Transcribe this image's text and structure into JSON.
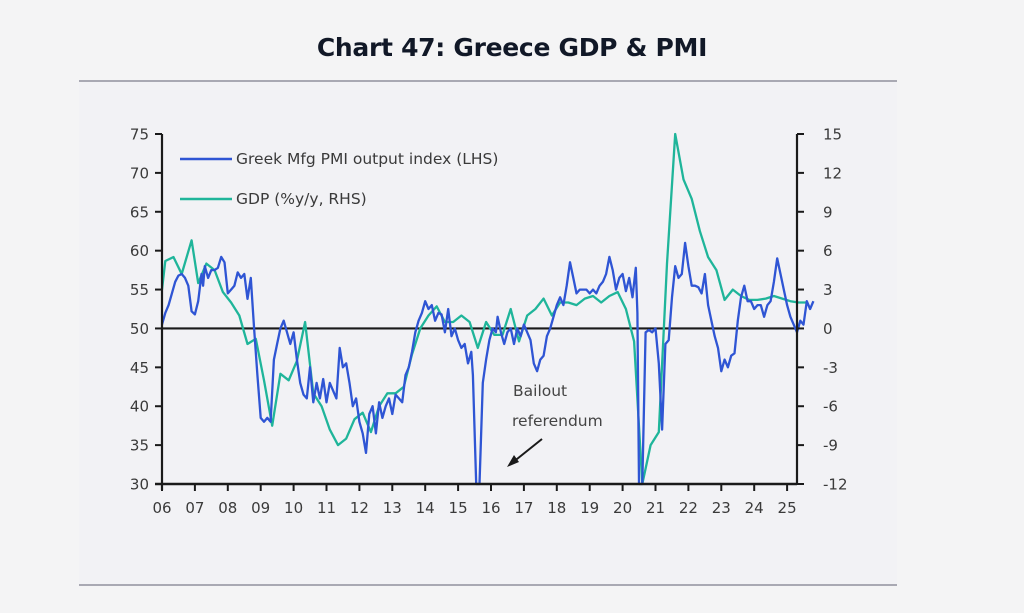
{
  "page": {
    "title": "Chart 47: Greece GDP & PMI"
  },
  "chart_data": {
    "type": "line",
    "title": "Chart 47: Greece GDP & PMI",
    "xlabel": "",
    "ylabel_left": "",
    "ylabel_right": "",
    "x_tick_labels": [
      "06",
      "07",
      "08",
      "09",
      "10",
      "11",
      "12",
      "13",
      "14",
      "15",
      "16",
      "17",
      "18",
      "19",
      "20",
      "21",
      "22",
      "23",
      "24",
      "25"
    ],
    "xlim": [
      2006.0,
      2025.3
    ],
    "y_left": {
      "lim": [
        30,
        75
      ],
      "ticks": [
        75,
        70,
        65,
        60,
        55,
        50,
        45,
        40,
        35,
        30
      ]
    },
    "y_right": {
      "lim": [
        -12,
        15
      ],
      "ticks": [
        "15",
        "12",
        "9",
        "6",
        "3",
        "0",
        "-3",
        "-6",
        "-9",
        "-12"
      ]
    },
    "reference_line": {
      "axis": "left",
      "value": 50
    },
    "legend": {
      "position": "top-left"
    },
    "colors": {
      "pmi": "#2f55d4",
      "gdp": "#1fb59a",
      "axis": "#1a1a1a"
    },
    "series": [
      {
        "name": "Greek Mfg PMI output index (LHS)",
        "axis": "left",
        "points": [
          [
            2006.0,
            50.5
          ],
          [
            2006.1,
            52
          ],
          [
            2006.2,
            53
          ],
          [
            2006.3,
            54.5
          ],
          [
            2006.4,
            56
          ],
          [
            2006.5,
            56.8
          ],
          [
            2006.6,
            57
          ],
          [
            2006.7,
            56.5
          ],
          [
            2006.8,
            55.5
          ],
          [
            2006.9,
            52.2
          ],
          [
            2007.0,
            51.8
          ],
          [
            2007.1,
            53.5
          ],
          [
            2007.2,
            57
          ],
          [
            2007.25,
            55.5
          ],
          [
            2007.3,
            58
          ],
          [
            2007.4,
            56.5
          ],
          [
            2007.5,
            57.5
          ],
          [
            2007.6,
            57.5
          ],
          [
            2007.7,
            57.8
          ],
          [
            2007.8,
            59.2
          ],
          [
            2007.9,
            58.5
          ],
          [
            2008.0,
            54.5
          ],
          [
            2008.1,
            55
          ],
          [
            2008.2,
            55.5
          ],
          [
            2008.3,
            57.2
          ],
          [
            2008.4,
            56.5
          ],
          [
            2008.5,
            57
          ],
          [
            2008.6,
            53.8
          ],
          [
            2008.7,
            56.5
          ],
          [
            2008.8,
            50
          ],
          [
            2008.9,
            44
          ],
          [
            2009.0,
            38.5
          ],
          [
            2009.1,
            38
          ],
          [
            2009.2,
            38.5
          ],
          [
            2009.3,
            38
          ],
          [
            2009.4,
            46
          ],
          [
            2009.5,
            48
          ],
          [
            2009.6,
            50
          ],
          [
            2009.7,
            51
          ],
          [
            2009.8,
            49.5
          ],
          [
            2009.9,
            48
          ],
          [
            2010.0,
            49.5
          ],
          [
            2010.1,
            46
          ],
          [
            2010.2,
            43
          ],
          [
            2010.3,
            41.5
          ],
          [
            2010.4,
            41
          ],
          [
            2010.5,
            45
          ],
          [
            2010.6,
            40.5
          ],
          [
            2010.7,
            43
          ],
          [
            2010.8,
            41
          ],
          [
            2010.9,
            43.5
          ],
          [
            2011.0,
            40.5
          ],
          [
            2011.1,
            43
          ],
          [
            2011.2,
            42
          ],
          [
            2011.3,
            41
          ],
          [
            2011.4,
            47.5
          ],
          [
            2011.5,
            45
          ],
          [
            2011.6,
            45.5
          ],
          [
            2011.7,
            43
          ],
          [
            2011.8,
            40
          ],
          [
            2011.9,
            41
          ],
          [
            2012.0,
            38
          ],
          [
            2012.1,
            36.5
          ],
          [
            2012.2,
            34
          ],
          [
            2012.3,
            39
          ],
          [
            2012.4,
            40
          ],
          [
            2012.5,
            36.5
          ],
          [
            2012.6,
            40.5
          ],
          [
            2012.7,
            38.5
          ],
          [
            2012.8,
            40
          ],
          [
            2012.9,
            41
          ],
          [
            2013.0,
            39
          ],
          [
            2013.1,
            41.5
          ],
          [
            2013.2,
            41
          ],
          [
            2013.3,
            40.5
          ],
          [
            2013.4,
            44
          ],
          [
            2013.5,
            45
          ],
          [
            2013.6,
            47
          ],
          [
            2013.7,
            49.5
          ],
          [
            2013.8,
            51
          ],
          [
            2013.9,
            52
          ],
          [
            2014.0,
            53.5
          ],
          [
            2014.1,
            52.5
          ],
          [
            2014.2,
            53
          ],
          [
            2014.3,
            51
          ],
          [
            2014.4,
            52
          ],
          [
            2014.5,
            51.8
          ],
          [
            2014.6,
            49.5
          ],
          [
            2014.7,
            52.5
          ],
          [
            2014.8,
            49
          ],
          [
            2014.9,
            50
          ],
          [
            2015.0,
            48.5
          ],
          [
            2015.1,
            47.5
          ],
          [
            2015.2,
            48
          ],
          [
            2015.3,
            45.5
          ],
          [
            2015.4,
            47
          ],
          [
            2015.45,
            44
          ],
          [
            2015.55,
            30
          ],
          [
            2015.65,
            30
          ],
          [
            2015.75,
            43
          ],
          [
            2015.85,
            46
          ],
          [
            2015.95,
            48.5
          ],
          [
            2016.05,
            50
          ],
          [
            2016.15,
            49.5
          ],
          [
            2016.2,
            51.5
          ],
          [
            2016.3,
            49.5
          ],
          [
            2016.4,
            48
          ],
          [
            2016.5,
            49.5
          ],
          [
            2016.6,
            50
          ],
          [
            2016.7,
            48
          ],
          [
            2016.8,
            50
          ],
          [
            2016.9,
            49
          ],
          [
            2017.0,
            50.5
          ],
          [
            2017.1,
            49.5
          ],
          [
            2017.2,
            48.5
          ],
          [
            2017.3,
            45.5
          ],
          [
            2017.4,
            44.5
          ],
          [
            2017.5,
            46
          ],
          [
            2017.6,
            46.5
          ],
          [
            2017.7,
            49
          ],
          [
            2017.8,
            50
          ],
          [
            2017.9,
            51.5
          ],
          [
            2018.0,
            53
          ],
          [
            2018.1,
            54
          ],
          [
            2018.2,
            53
          ],
          [
            2018.3,
            55.5
          ],
          [
            2018.4,
            58.5
          ],
          [
            2018.5,
            56.5
          ],
          [
            2018.6,
            54.5
          ],
          [
            2018.7,
            55
          ],
          [
            2018.8,
            55
          ],
          [
            2018.9,
            55
          ],
          [
            2019.0,
            54.5
          ],
          [
            2019.1,
            55
          ],
          [
            2019.2,
            54.5
          ],
          [
            2019.3,
            55.5
          ],
          [
            2019.4,
            56
          ],
          [
            2019.5,
            57
          ],
          [
            2019.6,
            59.2
          ],
          [
            2019.7,
            57.5
          ],
          [
            2019.8,
            55
          ],
          [
            2019.9,
            56.5
          ],
          [
            2020.0,
            57
          ],
          [
            2020.1,
            54.8
          ],
          [
            2020.2,
            56.5
          ],
          [
            2020.3,
            54
          ],
          [
            2020.4,
            57.8
          ],
          [
            2020.45,
            52
          ],
          [
            2020.5,
            30
          ],
          [
            2020.6,
            30
          ],
          [
            2020.7,
            49.5
          ],
          [
            2020.8,
            49.8
          ],
          [
            2020.9,
            49.5
          ],
          [
            2021.0,
            50
          ],
          [
            2021.1,
            45.5
          ],
          [
            2021.2,
            37
          ],
          [
            2021.3,
            48
          ],
          [
            2021.4,
            48.5
          ],
          [
            2021.5,
            54
          ],
          [
            2021.6,
            58
          ],
          [
            2021.7,
            56.5
          ],
          [
            2021.8,
            57
          ],
          [
            2021.9,
            61
          ],
          [
            2022.0,
            58
          ],
          [
            2022.1,
            55.5
          ],
          [
            2022.2,
            55.5
          ],
          [
            2022.3,
            55.3
          ],
          [
            2022.4,
            54.5
          ],
          [
            2022.5,
            57
          ],
          [
            2022.6,
            53
          ],
          [
            2022.7,
            51
          ],
          [
            2022.8,
            49
          ],
          [
            2022.9,
            47.5
          ],
          [
            2023.0,
            44.5
          ],
          [
            2023.1,
            46
          ],
          [
            2023.2,
            45
          ],
          [
            2023.3,
            46.5
          ],
          [
            2023.4,
            46.8
          ],
          [
            2023.5,
            51
          ],
          [
            2023.6,
            54
          ],
          [
            2023.7,
            55.5
          ],
          [
            2023.8,
            53.5
          ],
          [
            2023.9,
            53.5
          ],
          [
            2024.0,
            52.5
          ],
          [
            2024.1,
            53
          ],
          [
            2024.2,
            53
          ],
          [
            2024.3,
            51.5
          ],
          [
            2024.4,
            53
          ],
          [
            2024.5,
            53.5
          ],
          [
            2024.6,
            56
          ],
          [
            2024.7,
            59
          ],
          [
            2024.8,
            57
          ],
          [
            2024.9,
            55
          ],
          [
            2025.0,
            53
          ],
          [
            2025.1,
            51.5
          ],
          [
            2025.2,
            50.5
          ],
          [
            2025.3,
            49.5
          ],
          [
            2025.4,
            51
          ],
          [
            2025.5,
            50.5
          ],
          [
            2025.6,
            53.5
          ],
          [
            2025.7,
            52.5
          ],
          [
            2025.8,
            53.5
          ]
        ]
      },
      {
        "name": "GDP (%y/y, RHS)",
        "axis": "right",
        "points": [
          [
            2006.0,
            3
          ],
          [
            2006.1,
            5.2
          ],
          [
            2006.35,
            5.5
          ],
          [
            2006.6,
            4.2
          ],
          [
            2006.9,
            6.8
          ],
          [
            2007.1,
            3.5
          ],
          [
            2007.35,
            5
          ],
          [
            2007.6,
            4.5
          ],
          [
            2007.85,
            2.8
          ],
          [
            2008.1,
            2
          ],
          [
            2008.35,
            1
          ],
          [
            2008.6,
            -1.2
          ],
          [
            2008.85,
            -0.8
          ],
          [
            2009.1,
            -4
          ],
          [
            2009.35,
            -7.5
          ],
          [
            2009.6,
            -3.5
          ],
          [
            2009.85,
            -4
          ],
          [
            2010.1,
            -2.5
          ],
          [
            2010.35,
            0.5
          ],
          [
            2010.6,
            -5
          ],
          [
            2010.85,
            -6
          ],
          [
            2011.1,
            -7.8
          ],
          [
            2011.35,
            -9
          ],
          [
            2011.6,
            -8.5
          ],
          [
            2011.85,
            -7
          ],
          [
            2012.1,
            -6.5
          ],
          [
            2012.35,
            -8
          ],
          [
            2012.6,
            -6
          ],
          [
            2012.85,
            -5
          ],
          [
            2013.1,
            -5
          ],
          [
            2013.35,
            -4.5
          ],
          [
            2013.6,
            -2
          ],
          [
            2013.85,
            0
          ],
          [
            2014.1,
            1
          ],
          [
            2014.35,
            1.7
          ],
          [
            2014.6,
            0.5
          ],
          [
            2014.85,
            0.5
          ],
          [
            2015.1,
            1
          ],
          [
            2015.35,
            0.5
          ],
          [
            2015.6,
            -1.5
          ],
          [
            2015.85,
            0.5
          ],
          [
            2016.1,
            -0.5
          ],
          [
            2016.35,
            -0.5
          ],
          [
            2016.6,
            1.5
          ],
          [
            2016.85,
            -1
          ],
          [
            2017.1,
            1
          ],
          [
            2017.35,
            1.5
          ],
          [
            2017.6,
            2.3
          ],
          [
            2017.85,
            1
          ],
          [
            2018.1,
            2
          ],
          [
            2018.35,
            2
          ],
          [
            2018.6,
            1.8
          ],
          [
            2018.85,
            2.3
          ],
          [
            2019.1,
            2.5
          ],
          [
            2019.35,
            2
          ],
          [
            2019.6,
            2.5
          ],
          [
            2019.85,
            2.8
          ],
          [
            2020.1,
            1.5
          ],
          [
            2020.35,
            -1
          ],
          [
            2020.6,
            -12
          ],
          [
            2020.85,
            -9
          ],
          [
            2021.1,
            -8
          ],
          [
            2021.35,
            5
          ],
          [
            2021.6,
            15
          ],
          [
            2021.85,
            11.5
          ],
          [
            2022.1,
            10
          ],
          [
            2022.35,
            7.5
          ],
          [
            2022.6,
            5.5
          ],
          [
            2022.85,
            4.5
          ],
          [
            2023.1,
            2.2
          ],
          [
            2023.35,
            3
          ],
          [
            2023.6,
            2.5
          ],
          [
            2023.85,
            2.2
          ],
          [
            2024.1,
            2.2
          ],
          [
            2024.35,
            2.3
          ],
          [
            2024.6,
            2.5
          ],
          [
            2024.85,
            2.3
          ],
          [
            2025.1,
            2.1
          ],
          [
            2025.35,
            2
          ],
          [
            2025.6,
            2
          ]
        ]
      }
    ],
    "annotations": [
      {
        "text_lines": [
          "Bailout",
          "referendum"
        ],
        "arrow": true,
        "target_year": 2016.6
      }
    ]
  }
}
